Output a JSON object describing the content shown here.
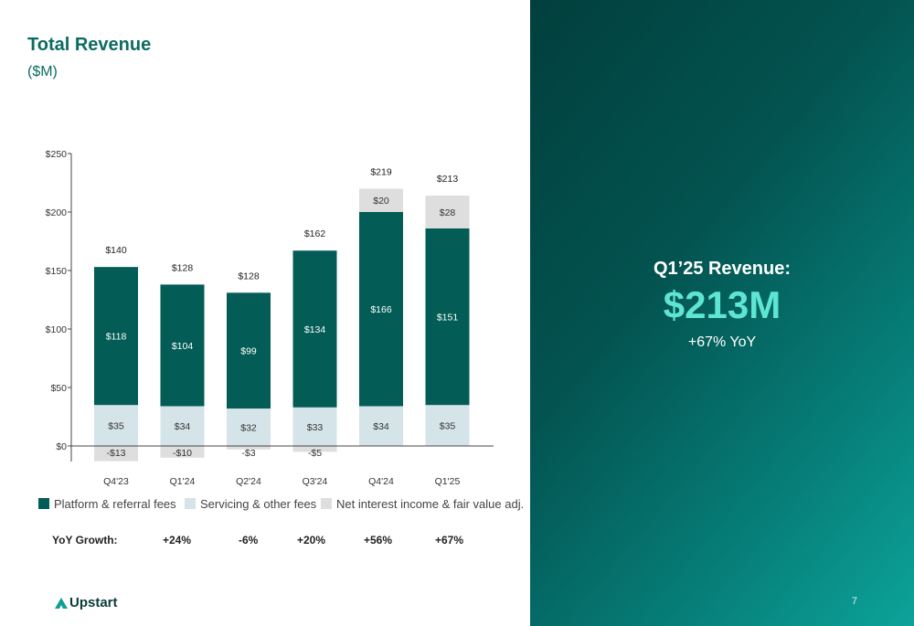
{
  "title": "Total Revenue",
  "subtitle": "($M)",
  "legend": {
    "platform": "Platform & referral fees",
    "servicing": "Servicing & other fees",
    "netint": "Net interest income & fair value adj."
  },
  "yoy": {
    "label": "YoY Growth:",
    "values": [
      "+24%",
      "-6%",
      "+20%",
      "+56%",
      "+67%"
    ]
  },
  "logo_text": "Upstart",
  "kpi": {
    "title": "Q1’25 Revenue:",
    "value": "$213M",
    "sub": "+67% YoY"
  },
  "page_number": "7",
  "colors": {
    "platform": "#035c56",
    "servicing": "#d5e4e8",
    "netint": "#dedede",
    "axis": "#444444"
  },
  "chart_data": {
    "type": "bar",
    "stacked": true,
    "categories": [
      "Q4'23",
      "Q1'24",
      "Q2'24",
      "Q3'24",
      "Q4'24",
      "Q1'25"
    ],
    "series": [
      {
        "name": "Platform & referral fees",
        "values": [
          118,
          104,
          99,
          134,
          166,
          151
        ],
        "labels": [
          "$118",
          "$104",
          "$99",
          "$134",
          "$166",
          "$151"
        ]
      },
      {
        "name": "Servicing & other fees",
        "values": [
          35,
          34,
          32,
          33,
          34,
          35
        ],
        "labels": [
          "$35",
          "$34",
          "$32",
          "$33",
          "$34",
          "$35"
        ]
      },
      {
        "name": "Net interest income & fair value adj.",
        "values": [
          -13,
          -10,
          -3,
          -5,
          20,
          28
        ],
        "labels": [
          "-$13",
          "-$10",
          "-$3",
          "-$5",
          "$20",
          "$28"
        ]
      }
    ],
    "totals": [
      140,
      128,
      128,
      162,
      219,
      213
    ],
    "total_labels": [
      "$140",
      "$128",
      "$128",
      "$162",
      "$219",
      "$213"
    ],
    "ylim": [
      0,
      250
    ],
    "yticks": [
      0,
      50,
      100,
      150,
      200,
      250
    ],
    "ytick_labels": [
      "$0",
      "$50",
      "$100",
      "$150",
      "$200",
      "$250"
    ]
  }
}
